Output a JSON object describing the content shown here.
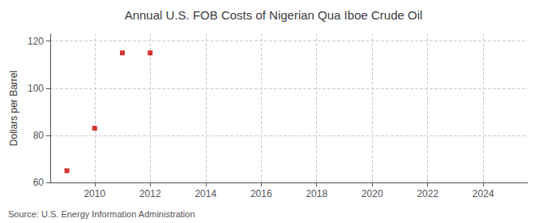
{
  "chart_data": {
    "type": "scatter",
    "title": "Annual U.S. FOB Costs of Nigerian Qua Iboe Crude Oil",
    "ylabel": "Dollars per Barrel",
    "annotations": [
      "Source: U.S. Energy Information Administration"
    ],
    "x": [
      2009,
      2010,
      2011,
      2012
    ],
    "values": [
      65.0,
      83.0,
      115.0,
      115.0
    ],
    "color": "#cc0000",
    "marker": "square",
    "xlim": [
      2008.4,
      2025.6
    ],
    "xticks": [
      2010,
      2012,
      2014,
      2016,
      2018,
      2020,
      2022,
      2024
    ],
    "ylim": [
      60,
      123
    ],
    "yticks": [
      60,
      80,
      100,
      120
    ],
    "grid": true
  }
}
